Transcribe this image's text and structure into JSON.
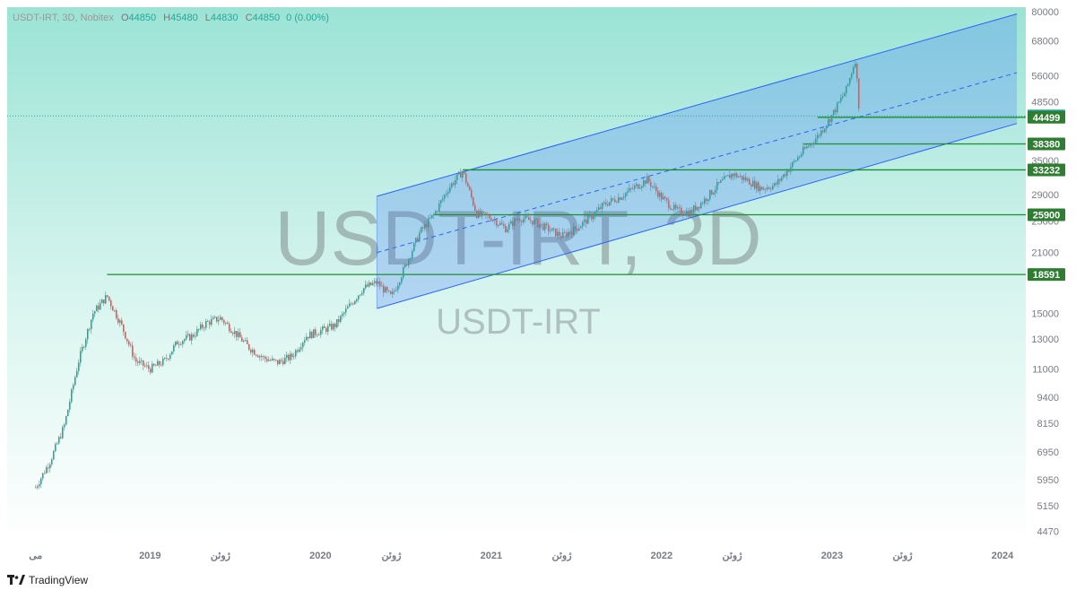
{
  "legend": {
    "symbol": "USDT-IRT, 3D, Nobitex",
    "open_label": "O",
    "open": "44850",
    "high_label": "H",
    "high": "45480",
    "low_label": "L",
    "low": "44830",
    "close_label": "C",
    "close": "44850",
    "change": "0 (0.00%)"
  },
  "watermark": {
    "main": "USDT-IRT, 3D",
    "sub": "USDT-IRT"
  },
  "footer": {
    "brand": "TradingView",
    "logo_icon": "tradingview-logo-icon"
  },
  "colors": {
    "up": "#26a69a",
    "down": "#ef5350",
    "channel_line": "#2962ff",
    "channel_fill": "#2962ff",
    "level_line": "#1b8f2f",
    "price_badge": "#26a69a",
    "level_badge": "#2e7d32"
  },
  "chart_data": {
    "type": "candlestick",
    "title": "USDT-IRT, 3D, Nobitex",
    "y_scale": "log",
    "ylim": [
      4200,
      82000
    ],
    "y_ticks": [
      "80000",
      "68000",
      "56000",
      "48500",
      "44850",
      "44499",
      "38380",
      "35000",
      "33232",
      "29000",
      "25900",
      "25000",
      "21000",
      "18591",
      "15000",
      "13000",
      "11000",
      "9400",
      "8150",
      "6950",
      "5950",
      "5150",
      "4470"
    ],
    "x_ticks": [
      "می",
      "2019",
      "ژوئن",
      "2020",
      "ژوئن",
      "2021",
      "ژوئن",
      "2022",
      "ژوئن",
      "2023",
      "ژوئن",
      "2024"
    ],
    "last_price": 44850,
    "price_labels": [
      {
        "value": 44850,
        "kind": "last-price"
      },
      {
        "value": 44499,
        "kind": "level"
      },
      {
        "value": 38380,
        "kind": "level"
      },
      {
        "value": 33232,
        "kind": "level"
      },
      {
        "value": 25900,
        "kind": "level"
      },
      {
        "value": 18591,
        "kind": "level"
      }
    ],
    "horizontal_levels": [
      {
        "value": 18591,
        "from": "2018-10"
      },
      {
        "value": 25900,
        "from": "2020-09"
      },
      {
        "value": 33232,
        "from": "2020-11"
      },
      {
        "value": 38380,
        "from": "2022-11"
      },
      {
        "value": 44499,
        "from": "2022-12"
      }
    ],
    "regression_channel": {
      "from": "2020-05",
      "to": "2024-02",
      "upper": [
        28700,
        79000
      ],
      "middle": [
        21000,
        57000
      ],
      "lower": [
        15400,
        43000
      ]
    },
    "price_path": [
      {
        "date": "2018-05",
        "price": 5700
      },
      {
        "date": "2018-06",
        "price": 6600
      },
      {
        "date": "2018-07",
        "price": 8000
      },
      {
        "date": "2018-08",
        "price": 11500
      },
      {
        "date": "2018-09",
        "price": 15000
      },
      {
        "date": "2018-10",
        "price": 16500
      },
      {
        "date": "2018-11",
        "price": 14000
      },
      {
        "date": "2018-12",
        "price": 11500
      },
      {
        "date": "2019-01",
        "price": 11000
      },
      {
        "date": "2019-02",
        "price": 11500
      },
      {
        "date": "2019-03",
        "price": 12800
      },
      {
        "date": "2019-04",
        "price": 13200
      },
      {
        "date": "2019-05",
        "price": 14200
      },
      {
        "date": "2019-06",
        "price": 14600
      },
      {
        "date": "2019-07",
        "price": 13500
      },
      {
        "date": "2019-08",
        "price": 12400
      },
      {
        "date": "2019-09",
        "price": 11700
      },
      {
        "date": "2019-10",
        "price": 11400
      },
      {
        "date": "2019-11",
        "price": 11800
      },
      {
        "date": "2019-12",
        "price": 13200
      },
      {
        "date": "2020-01",
        "price": 13600
      },
      {
        "date": "2020-02",
        "price": 14000
      },
      {
        "date": "2020-03",
        "price": 15500
      },
      {
        "date": "2020-04",
        "price": 17200
      },
      {
        "date": "2020-05",
        "price": 17800
      },
      {
        "date": "2020-06",
        "price": 16400
      },
      {
        "date": "2020-07",
        "price": 19500
      },
      {
        "date": "2020-08",
        "price": 23500
      },
      {
        "date": "2020-09",
        "price": 26000
      },
      {
        "date": "2020-10",
        "price": 30000
      },
      {
        "date": "2020-11",
        "price": 33000
      },
      {
        "date": "2020-12",
        "price": 26000
      },
      {
        "date": "2021-01",
        "price": 25500
      },
      {
        "date": "2021-02",
        "price": 24000
      },
      {
        "date": "2021-03",
        "price": 25500
      },
      {
        "date": "2021-04",
        "price": 25000
      },
      {
        "date": "2021-05",
        "price": 24000
      },
      {
        "date": "2021-06",
        "price": 23000
      },
      {
        "date": "2021-07",
        "price": 24000
      },
      {
        "date": "2021-08",
        "price": 25500
      },
      {
        "date": "2021-09",
        "price": 27500
      },
      {
        "date": "2021-10",
        "price": 28500
      },
      {
        "date": "2021-11",
        "price": 30000
      },
      {
        "date": "2021-12",
        "price": 31500
      },
      {
        "date": "2022-01",
        "price": 28500
      },
      {
        "date": "2022-02",
        "price": 26500
      },
      {
        "date": "2022-03",
        "price": 26200
      },
      {
        "date": "2022-04",
        "price": 28000
      },
      {
        "date": "2022-05",
        "price": 30500
      },
      {
        "date": "2022-06",
        "price": 32500
      },
      {
        "date": "2022-07",
        "price": 31500
      },
      {
        "date": "2022-08",
        "price": 30000
      },
      {
        "date": "2022-09",
        "price": 30500
      },
      {
        "date": "2022-10",
        "price": 33500
      },
      {
        "date": "2022-11",
        "price": 37000
      },
      {
        "date": "2022-12",
        "price": 40000
      },
      {
        "date": "2023-01",
        "price": 45000
      },
      {
        "date": "2023-02",
        "price": 52000
      },
      {
        "date": "2023-02-20",
        "price": 61500
      },
      {
        "date": "2023-03",
        "price": 44850
      }
    ]
  }
}
